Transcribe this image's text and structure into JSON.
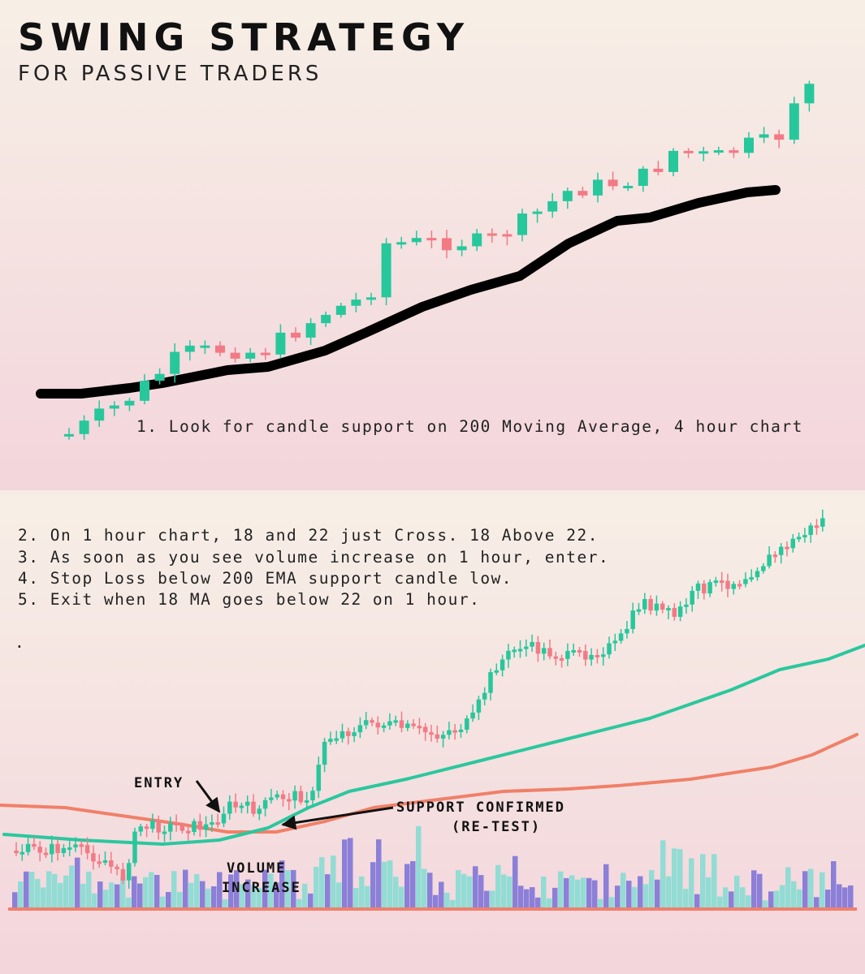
{
  "header": {
    "title": "SWING STRATEGY",
    "subtitle": "FOR PASSIVE TRADERS"
  },
  "top_panel": {
    "note": "1. Look for candle support on 200 Moving Average, 4 hour chart"
  },
  "bottom_panel": {
    "steps": [
      "2. On 1 hour chart, 18 and 22 just Cross. 18 Above 22.",
      "3. As soon as you see volume increase on 1 hour, enter.",
      "4. Stop Loss below 200 EMA support candle low.",
      "5. Exit when 18 MA goes below 22 on 1 hour.",
      "."
    ],
    "annotations": {
      "entry": "ENTRY",
      "support": [
        "SUPPORT CONFIRMED",
        "(RE-TEST)"
      ],
      "volume": [
        "VOLUME",
        "INCREASE"
      ]
    }
  }
}
